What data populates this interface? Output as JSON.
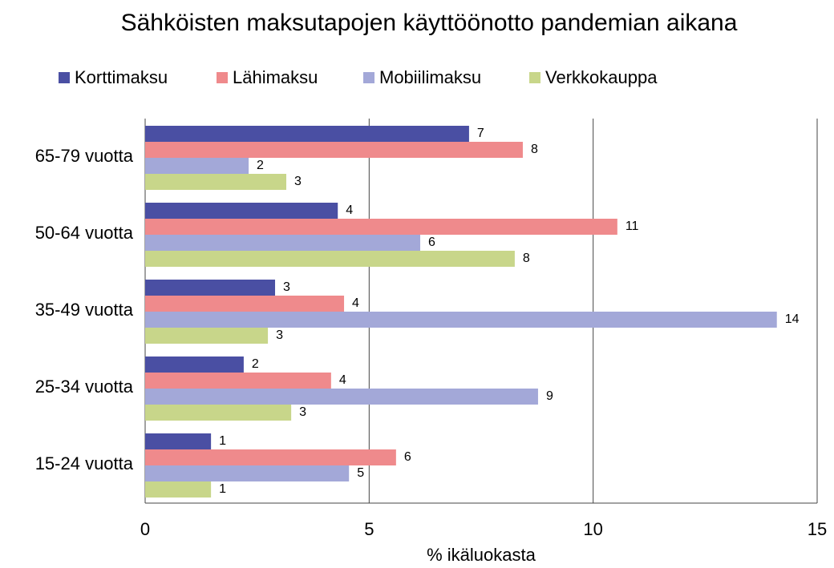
{
  "chart_data": {
    "type": "hbar",
    "title": "Sähköisten maksutapojen käyttöönotto pandemian aikana",
    "x_label": "% ikäluokasta",
    "categories": [
      "65-79 vuotta",
      "50-64 vuotta",
      "35-49 vuotta",
      "25-34 vuotta",
      "15-24 vuotta"
    ],
    "series": [
      {
        "name": "Korttimaksu",
        "color": "#4a4fa3",
        "values": [
          7.23,
          4.3,
          2.9,
          2.2,
          1.47
        ],
        "value_labels": [
          "7",
          "4",
          "3",
          "2",
          "1"
        ]
      },
      {
        "name": "Lähimaksu",
        "color": "#ef8a8c",
        "values": [
          8.43,
          10.54,
          4.44,
          4.15,
          5.6
        ],
        "value_labels": [
          "8",
          "11",
          "4",
          "4",
          "6"
        ]
      },
      {
        "name": "Mobiilimaksu",
        "color": "#a3a8d8",
        "values": [
          2.31,
          6.14,
          14.1,
          8.77,
          4.55
        ],
        "value_labels": [
          "2",
          "6",
          "14",
          "9",
          "5"
        ]
      },
      {
        "name": "Verkkokauppa",
        "color": "#c8d68a",
        "values": [
          3.15,
          8.25,
          2.74,
          3.26,
          1.47
        ],
        "value_labels": [
          "3",
          "8",
          "3",
          "3",
          "1"
        ]
      }
    ],
    "xlim": [
      0,
      15
    ],
    "xticks": [
      0,
      5,
      10,
      15
    ],
    "grid": true,
    "legend": "top"
  }
}
